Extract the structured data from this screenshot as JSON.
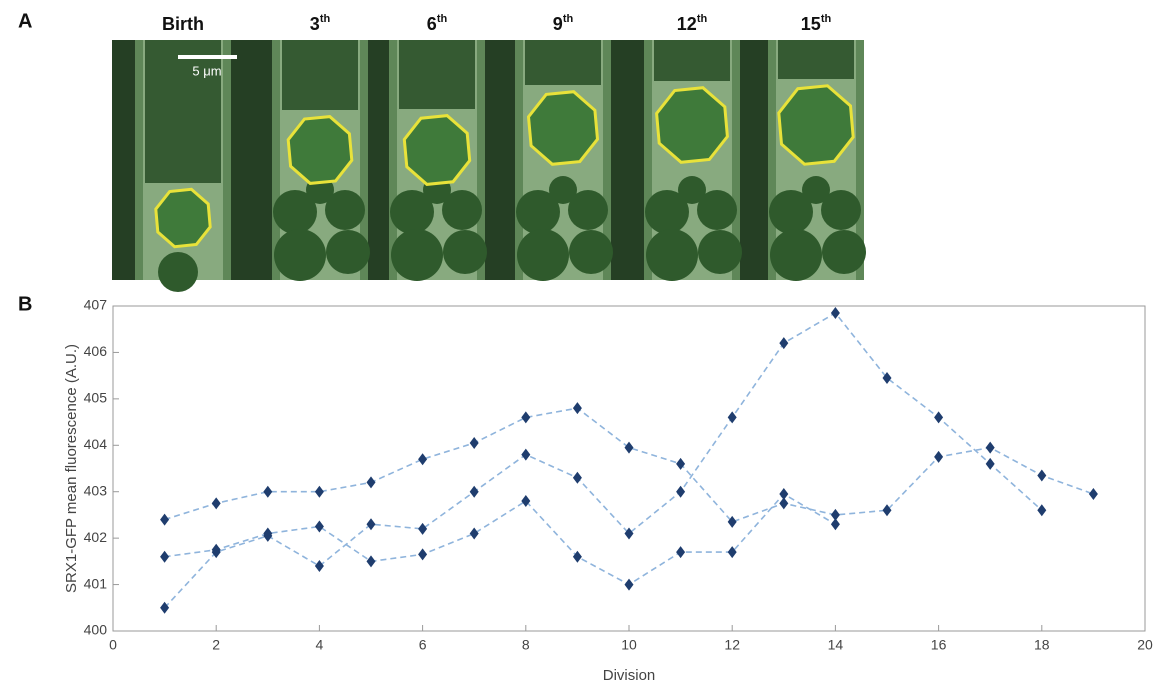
{
  "panel_labels": [
    "A",
    "B"
  ],
  "image_panel": {
    "labels": [
      {
        "main": "Birth"
      },
      {
        "main": "3",
        "sup": "th"
      },
      {
        "main": "6",
        "sup": "th"
      },
      {
        "main": "9",
        "sup": "th"
      },
      {
        "main": "12",
        "sup": "th"
      },
      {
        "main": "15",
        "sup": "th"
      }
    ],
    "scale_bar": "5 μm"
  },
  "chart_data": {
    "type": "line",
    "xlabel": "Division",
    "ylabel": "SRX1-GFP mean fluorescence (A.U.)",
    "x": [
      1,
      2,
      3,
      4,
      5,
      6,
      7,
      8,
      9,
      10,
      11,
      12,
      13,
      14,
      15,
      16,
      17,
      18,
      19
    ],
    "line_color": "#8fb4dc",
    "line_style": "dashed",
    "series": [
      {
        "color": "#1f3d6e",
        "values": [
          402.4,
          402.75,
          403.0,
          403.0,
          403.2,
          403.7,
          404.05,
          404.6,
          404.8,
          403.95,
          403.6,
          402.35,
          402.75,
          402.5,
          402.6,
          403.75,
          403.95,
          403.35,
          402.95
        ]
      },
      {
        "color": "#1f3d6e",
        "values": [
          401.6,
          401.75,
          402.1,
          402.25,
          401.5,
          401.65,
          402.1,
          402.8,
          401.6,
          401.0,
          401.7,
          401.7,
          402.95,
          402.3,
          null,
          null,
          null,
          null,
          null
        ]
      },
      {
        "color": "#1f3d6e",
        "values": [
          400.5,
          401.7,
          402.05,
          401.4,
          402.3,
          402.2,
          403.0,
          403.8,
          403.3,
          402.1,
          403.0,
          404.6,
          406.2,
          406.85,
          405.45,
          404.6,
          403.6,
          402.6,
          null
        ]
      }
    ],
    "xlim": [
      0,
      20
    ],
    "xticks": [
      0,
      2,
      4,
      6,
      8,
      10,
      12,
      14,
      16,
      18,
      20
    ],
    "ylim": [
      400,
      407
    ],
    "yticks": [
      400,
      401,
      402,
      403,
      404,
      405,
      406,
      407
    ],
    "grid": false
  }
}
